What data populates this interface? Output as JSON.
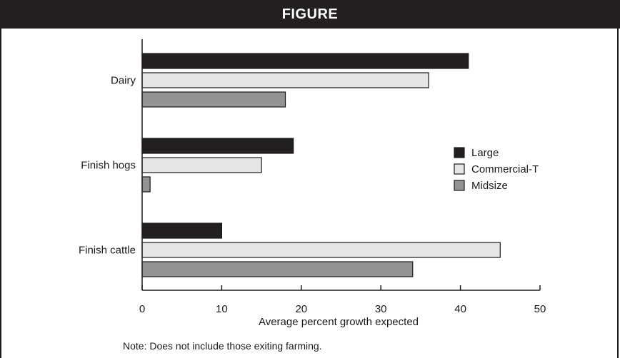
{
  "header": {
    "title": "FIGURE"
  },
  "note": "Note: Does not include those exiting farming.",
  "colors": {
    "Large": "#231f20",
    "Commercial-T": "#e5e5e5",
    "Midsize": "#939393",
    "stroke": "#1a1a1a"
  },
  "chart_data": {
    "type": "bar",
    "orientation": "horizontal",
    "title": "",
    "xlabel": "Average percent growth expected",
    "ylabel": "",
    "categories": [
      "Dairy",
      "Finish hogs",
      "Finish cattle"
    ],
    "series": [
      {
        "name": "Large",
        "values": [
          41,
          19,
          10
        ]
      },
      {
        "name": "Commercial-T",
        "values": [
          36,
          15,
          45
        ]
      },
      {
        "name": "Midsize",
        "values": [
          18,
          1,
          34
        ]
      }
    ],
    "xlim": [
      0,
      50
    ],
    "xticks": [
      "0",
      "10",
      "20",
      "30",
      "40",
      "50"
    ],
    "grid": false,
    "legend_position": "right"
  }
}
